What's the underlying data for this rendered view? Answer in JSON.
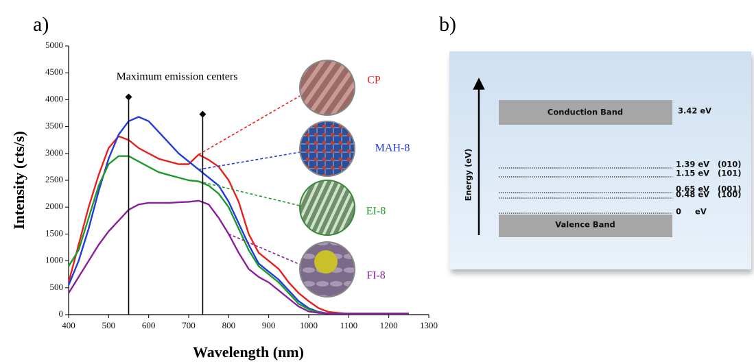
{
  "chart_data": {
    "type": "line",
    "panel_label": "a)",
    "x_label": "Wavelength (nm)",
    "y_label": "Intensity (cts/s)",
    "annotation": "Maximum emission centers",
    "emission_centers": [
      {
        "x": 550,
        "y": 4050
      },
      {
        "x": 735,
        "y": 3730
      }
    ],
    "xlim": [
      400,
      1300
    ],
    "xticks": [
      400,
      500,
      600,
      700,
      800,
      900,
      1000,
      1100,
      1200,
      1300
    ],
    "ylim": [
      0,
      5000
    ],
    "yticks": [
      0,
      500,
      1000,
      1500,
      2000,
      2500,
      3000,
      3500,
      4000,
      4500,
      5000
    ],
    "x": [
      400,
      425,
      450,
      475,
      500,
      525,
      550,
      575,
      600,
      625,
      650,
      675,
      700,
      725,
      750,
      775,
      800,
      825,
      850,
      875,
      900,
      925,
      950,
      975,
      1000,
      1025,
      1050,
      1075,
      1100,
      1125,
      1150,
      1175,
      1200,
      1225,
      1250
    ],
    "series": [
      {
        "name": "CP",
        "color": "#e8201c",
        "values": [
          600,
          1300,
          2000,
          2600,
          3100,
          3320,
          3250,
          3100,
          3000,
          2900,
          2850,
          2800,
          2800,
          2980,
          2880,
          2750,
          2500,
          2100,
          1500,
          1150,
          1000,
          850,
          600,
          400,
          250,
          120,
          50,
          30,
          20,
          20,
          20,
          20,
          20,
          20,
          20
        ]
      },
      {
        "name": "MAH-8",
        "color": "#1f3bdc",
        "values": [
          550,
          1000,
          1600,
          2300,
          2900,
          3350,
          3600,
          3680,
          3600,
          3400,
          3200,
          3000,
          2850,
          2700,
          2550,
          2400,
          2100,
          1700,
          1300,
          950,
          800,
          650,
          450,
          250,
          120,
          50,
          20,
          20,
          20,
          20,
          20,
          20,
          20,
          20,
          20
        ]
      },
      {
        "name": "EI-8",
        "color": "#1e9a2c",
        "values": [
          900,
          1200,
          1800,
          2400,
          2800,
          2950,
          2950,
          2850,
          2750,
          2650,
          2600,
          2550,
          2500,
          2480,
          2400,
          2250,
          2000,
          1600,
          1200,
          900,
          750,
          600,
          400,
          200,
          100,
          40,
          20,
          20,
          20,
          20,
          20,
          20,
          20,
          20,
          20
        ]
      },
      {
        "name": "FI-8",
        "color": "#8a1f9c",
        "values": [
          400,
          700,
          1000,
          1300,
          1550,
          1750,
          1950,
          2050,
          2080,
          2080,
          2080,
          2090,
          2100,
          2120,
          2050,
          1800,
          1500,
          1150,
          850,
          700,
          600,
          450,
          300,
          150,
          60,
          30,
          20,
          20,
          20,
          20,
          20,
          20,
          20,
          20,
          20
        ]
      }
    ]
  },
  "energy_diagram": {
    "panel_label": "b)",
    "axis_label": "Energy (eV)",
    "conduction_band": {
      "label": "Conduction Band",
      "energy": "3.42 eV"
    },
    "valence_band": {
      "label": "Valence Band",
      "energy": "0     eV"
    },
    "levels": [
      {
        "energy": "1.39 eV",
        "plane": "(010)"
      },
      {
        "energy": "1.15 eV",
        "plane": "(101)"
      },
      {
        "energy": "0.65 eV",
        "plane": "(001)"
      },
      {
        "energy": "0.48 eV",
        "plane": "(100)"
      }
    ]
  }
}
